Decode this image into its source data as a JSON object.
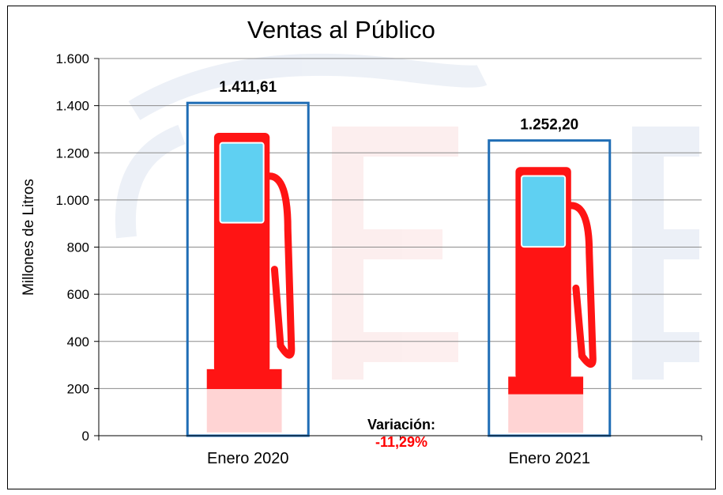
{
  "chart_data": {
    "type": "bar",
    "title": "Ventas al Público",
    "ylabel": "Millones  de Litros",
    "xlabel": "",
    "ylim": [
      0,
      1600
    ],
    "yticks": [
      0,
      200,
      400,
      600,
      800,
      1000,
      1200,
      1400,
      1600
    ],
    "ytick_labels": [
      "0",
      "200",
      "400",
      "600",
      "800",
      "1.000",
      "1.200",
      "1.400",
      "1.600"
    ],
    "categories": [
      "Enero 2020",
      "Enero 2021"
    ],
    "values": [
      1411.61,
      1252.2
    ],
    "value_labels": [
      "1.411,61",
      "1.252,20"
    ],
    "grid": true,
    "annotation": {
      "label": "Variación:",
      "value": "-11,29%"
    },
    "colors": {
      "bar_border": "#1f6db5",
      "pump_red": "#ff1414",
      "screen_blue": "#5fd0f2",
      "annotation_value": "#ff0000"
    },
    "bar_fill": "fuel-pump-icon"
  }
}
